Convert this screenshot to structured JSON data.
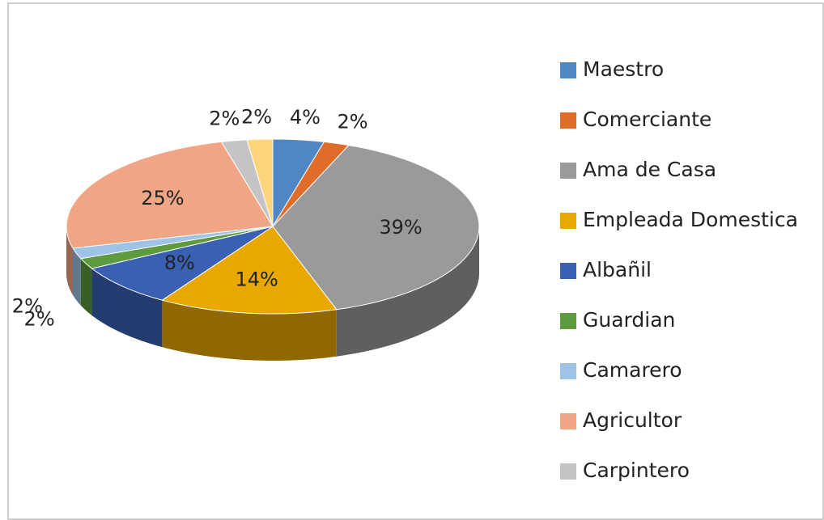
{
  "chart_data": {
    "type": "pie3d",
    "categories": [
      "Maestro",
      "Comerciante",
      "Ama de Casa",
      "Empleada Domestica",
      "Albañil",
      "Guardian",
      "Camarero",
      "Agricultor",
      "Carpintero",
      null
    ],
    "values": [
      4,
      2,
      39,
      14,
      8,
      2,
      2,
      25,
      2,
      2
    ],
    "value_labels": [
      "4%",
      "2%",
      "39%",
      "14%",
      "8%",
      "2%",
      "2%",
      "25%",
      "2%",
      "2%"
    ],
    "colors": [
      "#4f86c6",
      "#e06c2a",
      "#9a9a9a",
      "#e8a800",
      "#3a60b4",
      "#5e9a3e",
      "#9dc3e6",
      "#f0a584",
      "#c4c4c4",
      "#ffd47a"
    ],
    "legend": "right"
  }
}
